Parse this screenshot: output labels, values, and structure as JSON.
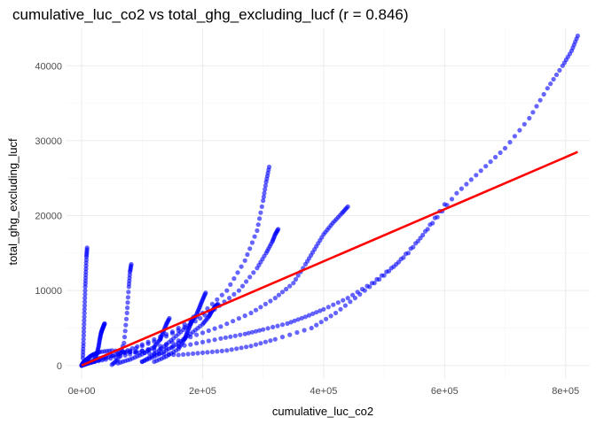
{
  "chart_data": {
    "type": "scatter",
    "title": "cumulative_luc_co2 vs total_ghg_excluding_lucf (r = 0.846)",
    "xlabel": "cumulative_luc_co2",
    "ylabel": "total_ghg_excluding_lucf",
    "xlim": [
      -25000,
      840000
    ],
    "ylim": [
      -1800,
      45000
    ],
    "x_ticks": [
      0,
      200000,
      400000,
      600000,
      800000
    ],
    "x_tick_labels": [
      "0e+00",
      "2e+05",
      "4e+05",
      "6e+05",
      "8e+05"
    ],
    "y_ticks": [
      0,
      10000,
      20000,
      30000,
      40000
    ],
    "y_tick_labels": [
      "0",
      "10000",
      "20000",
      "30000",
      "40000"
    ],
    "grid": true,
    "point_color": "#0000ff",
    "line_color": "#ff0000",
    "regression_line": {
      "x": [
        0,
        820000
      ],
      "y": [
        0,
        28500
      ]
    },
    "series": [
      {
        "x": [
          0,
          1000,
          2000,
          4000,
          8000,
          14000,
          20000,
          30000,
          50000,
          80000,
          120000,
          160000,
          200000,
          240000,
          280000,
          320000,
          380000,
          420000,
          460000,
          500000,
          540000,
          580000,
          620000,
          660000,
          700000,
          740000,
          770000,
          795000,
          810000,
          820000
        ],
        "y": [
          0,
          150,
          300,
          500,
          800,
          1200,
          1500,
          1800,
          2000,
          1800,
          1600,
          1400,
          1700,
          2000,
          2600,
          3500,
          5000,
          7000,
          9500,
          12000,
          15000,
          19000,
          23000,
          26000,
          29000,
          33000,
          37000,
          40000,
          42000,
          44000
        ]
      },
      {
        "x": [
          0,
          5000,
          15000,
          40000,
          80000,
          130000,
          180000,
          230000,
          270000,
          300000,
          340000,
          370000,
          400000,
          440000,
          480000,
          520000,
          560000,
          600000
        ],
        "y": [
          0,
          200,
          600,
          1200,
          1800,
          2200,
          2800,
          3600,
          4200,
          4800,
          5600,
          6500,
          7500,
          9000,
          11000,
          13500,
          17000,
          21500
        ]
      },
      {
        "x": [
          0,
          10000,
          40000,
          80000,
          130000,
          180000,
          230000,
          280000,
          320000,
          350000,
          370000,
          385000,
          400000,
          415000,
          430000,
          440000
        ],
        "y": [
          0,
          300,
          800,
          1500,
          2600,
          3800,
          5200,
          7000,
          9000,
          11000,
          13500,
          15500,
          17500,
          19000,
          20300,
          21200
        ]
      },
      {
        "x": [
          0,
          20000,
          60000,
          100000,
          150000,
          200000,
          240000,
          270000,
          290000,
          300000,
          305000,
          310000
        ],
        "y": [
          0,
          500,
          1500,
          2800,
          4500,
          7000,
          10000,
          14000,
          18000,
          22000,
          24500,
          26500
        ]
      },
      {
        "x": [
          0,
          30000,
          80000,
          130000,
          180000,
          220000,
          260000,
          290000,
          305000,
          315000,
          320000,
          325000
        ],
        "y": [
          0,
          800,
          2000,
          3500,
          5500,
          7500,
          10000,
          13000,
          15000,
          16500,
          17500,
          18200
        ]
      },
      {
        "x": [
          100000,
          120000,
          140000,
          160000,
          180000,
          200000,
          210000,
          215000,
          220000,
          225000
        ],
        "y": [
          500,
          1200,
          2000,
          3000,
          4200,
          5500,
          6500,
          7200,
          7800,
          8200
        ]
      },
      {
        "x": [
          100000,
          120000,
          140000,
          160000,
          180000,
          190000,
          195000,
          200000,
          205000
        ],
        "y": [
          500,
          1500,
          2800,
          4200,
          5600,
          6800,
          7800,
          8800,
          9700
        ]
      },
      {
        "x": [
          50000,
          60000,
          70000,
          75000,
          78000,
          80000,
          82000
        ],
        "y": [
          100,
          800,
          3000,
          7000,
          10500,
          12500,
          13500
        ]
      },
      {
        "x": [
          2000,
          3000,
          4000,
          5000,
          6000,
          7000,
          8000,
          9000
        ],
        "y": [
          1000,
          3000,
          5500,
          8000,
          10500,
          12500,
          14500,
          15700
        ]
      },
      {
        "x": [
          20000,
          25000,
          28000,
          30000,
          32000,
          34000,
          36000,
          38000
        ],
        "y": [
          500,
          1500,
          2500,
          3500,
          4300,
          4800,
          5200,
          5600
        ]
      },
      {
        "x": [
          60000,
          80000,
          100000,
          120000,
          130000,
          135000,
          140000,
          145000
        ],
        "y": [
          300,
          800,
          1500,
          2500,
          3500,
          4500,
          5500,
          6300
        ]
      },
      {
        "x": [
          120000,
          140000,
          160000,
          170000,
          175000,
          180000,
          185000
        ],
        "y": [
          500,
          1200,
          2200,
          3500,
          4500,
          5500,
          6500
        ]
      }
    ]
  }
}
